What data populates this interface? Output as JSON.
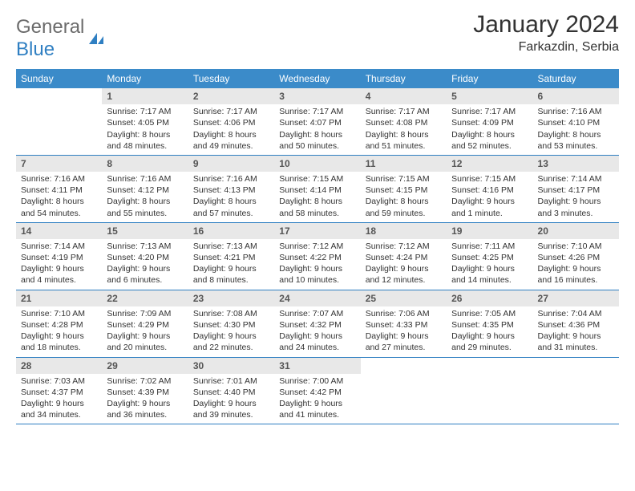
{
  "logo": {
    "general": "General",
    "blue": "Blue"
  },
  "title": "January 2024",
  "location": "Farkazdin, Serbia",
  "colors": {
    "header_bg": "#3b8bc9",
    "header_text": "#ffffff",
    "daynum_bg": "#e8e8e8",
    "daynum_text": "#555555",
    "rule": "#2f7fc2",
    "text": "#333333",
    "logo_gray": "#6b6b6b",
    "logo_blue": "#2f7fc2",
    "page_bg": "#ffffff"
  },
  "typography": {
    "title_fontsize": 30,
    "location_fontsize": 16,
    "weekday_fontsize": 12,
    "daynum_fontsize": 12,
    "body_fontsize": 10.5,
    "logo_fontsize": 24
  },
  "weekdays": [
    "Sunday",
    "Monday",
    "Tuesday",
    "Wednesday",
    "Thursday",
    "Friday",
    "Saturday"
  ],
  "weeks": [
    [
      {
        "n": "",
        "sr": "",
        "ss": "",
        "dl": ""
      },
      {
        "n": "1",
        "sr": "Sunrise: 7:17 AM",
        "ss": "Sunset: 4:05 PM",
        "dl": "Daylight: 8 hours and 48 minutes."
      },
      {
        "n": "2",
        "sr": "Sunrise: 7:17 AM",
        "ss": "Sunset: 4:06 PM",
        "dl": "Daylight: 8 hours and 49 minutes."
      },
      {
        "n": "3",
        "sr": "Sunrise: 7:17 AM",
        "ss": "Sunset: 4:07 PM",
        "dl": "Daylight: 8 hours and 50 minutes."
      },
      {
        "n": "4",
        "sr": "Sunrise: 7:17 AM",
        "ss": "Sunset: 4:08 PM",
        "dl": "Daylight: 8 hours and 51 minutes."
      },
      {
        "n": "5",
        "sr": "Sunrise: 7:17 AM",
        "ss": "Sunset: 4:09 PM",
        "dl": "Daylight: 8 hours and 52 minutes."
      },
      {
        "n": "6",
        "sr": "Sunrise: 7:16 AM",
        "ss": "Sunset: 4:10 PM",
        "dl": "Daylight: 8 hours and 53 minutes."
      }
    ],
    [
      {
        "n": "7",
        "sr": "Sunrise: 7:16 AM",
        "ss": "Sunset: 4:11 PM",
        "dl": "Daylight: 8 hours and 54 minutes."
      },
      {
        "n": "8",
        "sr": "Sunrise: 7:16 AM",
        "ss": "Sunset: 4:12 PM",
        "dl": "Daylight: 8 hours and 55 minutes."
      },
      {
        "n": "9",
        "sr": "Sunrise: 7:16 AM",
        "ss": "Sunset: 4:13 PM",
        "dl": "Daylight: 8 hours and 57 minutes."
      },
      {
        "n": "10",
        "sr": "Sunrise: 7:15 AM",
        "ss": "Sunset: 4:14 PM",
        "dl": "Daylight: 8 hours and 58 minutes."
      },
      {
        "n": "11",
        "sr": "Sunrise: 7:15 AM",
        "ss": "Sunset: 4:15 PM",
        "dl": "Daylight: 8 hours and 59 minutes."
      },
      {
        "n": "12",
        "sr": "Sunrise: 7:15 AM",
        "ss": "Sunset: 4:16 PM",
        "dl": "Daylight: 9 hours and 1 minute."
      },
      {
        "n": "13",
        "sr": "Sunrise: 7:14 AM",
        "ss": "Sunset: 4:17 PM",
        "dl": "Daylight: 9 hours and 3 minutes."
      }
    ],
    [
      {
        "n": "14",
        "sr": "Sunrise: 7:14 AM",
        "ss": "Sunset: 4:19 PM",
        "dl": "Daylight: 9 hours and 4 minutes."
      },
      {
        "n": "15",
        "sr": "Sunrise: 7:13 AM",
        "ss": "Sunset: 4:20 PM",
        "dl": "Daylight: 9 hours and 6 minutes."
      },
      {
        "n": "16",
        "sr": "Sunrise: 7:13 AM",
        "ss": "Sunset: 4:21 PM",
        "dl": "Daylight: 9 hours and 8 minutes."
      },
      {
        "n": "17",
        "sr": "Sunrise: 7:12 AM",
        "ss": "Sunset: 4:22 PM",
        "dl": "Daylight: 9 hours and 10 minutes."
      },
      {
        "n": "18",
        "sr": "Sunrise: 7:12 AM",
        "ss": "Sunset: 4:24 PM",
        "dl": "Daylight: 9 hours and 12 minutes."
      },
      {
        "n": "19",
        "sr": "Sunrise: 7:11 AM",
        "ss": "Sunset: 4:25 PM",
        "dl": "Daylight: 9 hours and 14 minutes."
      },
      {
        "n": "20",
        "sr": "Sunrise: 7:10 AM",
        "ss": "Sunset: 4:26 PM",
        "dl": "Daylight: 9 hours and 16 minutes."
      }
    ],
    [
      {
        "n": "21",
        "sr": "Sunrise: 7:10 AM",
        "ss": "Sunset: 4:28 PM",
        "dl": "Daylight: 9 hours and 18 minutes."
      },
      {
        "n": "22",
        "sr": "Sunrise: 7:09 AM",
        "ss": "Sunset: 4:29 PM",
        "dl": "Daylight: 9 hours and 20 minutes."
      },
      {
        "n": "23",
        "sr": "Sunrise: 7:08 AM",
        "ss": "Sunset: 4:30 PM",
        "dl": "Daylight: 9 hours and 22 minutes."
      },
      {
        "n": "24",
        "sr": "Sunrise: 7:07 AM",
        "ss": "Sunset: 4:32 PM",
        "dl": "Daylight: 9 hours and 24 minutes."
      },
      {
        "n": "25",
        "sr": "Sunrise: 7:06 AM",
        "ss": "Sunset: 4:33 PM",
        "dl": "Daylight: 9 hours and 27 minutes."
      },
      {
        "n": "26",
        "sr": "Sunrise: 7:05 AM",
        "ss": "Sunset: 4:35 PM",
        "dl": "Daylight: 9 hours and 29 minutes."
      },
      {
        "n": "27",
        "sr": "Sunrise: 7:04 AM",
        "ss": "Sunset: 4:36 PM",
        "dl": "Daylight: 9 hours and 31 minutes."
      }
    ],
    [
      {
        "n": "28",
        "sr": "Sunrise: 7:03 AM",
        "ss": "Sunset: 4:37 PM",
        "dl": "Daylight: 9 hours and 34 minutes."
      },
      {
        "n": "29",
        "sr": "Sunrise: 7:02 AM",
        "ss": "Sunset: 4:39 PM",
        "dl": "Daylight: 9 hours and 36 minutes."
      },
      {
        "n": "30",
        "sr": "Sunrise: 7:01 AM",
        "ss": "Sunset: 4:40 PM",
        "dl": "Daylight: 9 hours and 39 minutes."
      },
      {
        "n": "31",
        "sr": "Sunrise: 7:00 AM",
        "ss": "Sunset: 4:42 PM",
        "dl": "Daylight: 9 hours and 41 minutes."
      },
      {
        "n": "",
        "sr": "",
        "ss": "",
        "dl": ""
      },
      {
        "n": "",
        "sr": "",
        "ss": "",
        "dl": ""
      },
      {
        "n": "",
        "sr": "",
        "ss": "",
        "dl": ""
      }
    ]
  ]
}
